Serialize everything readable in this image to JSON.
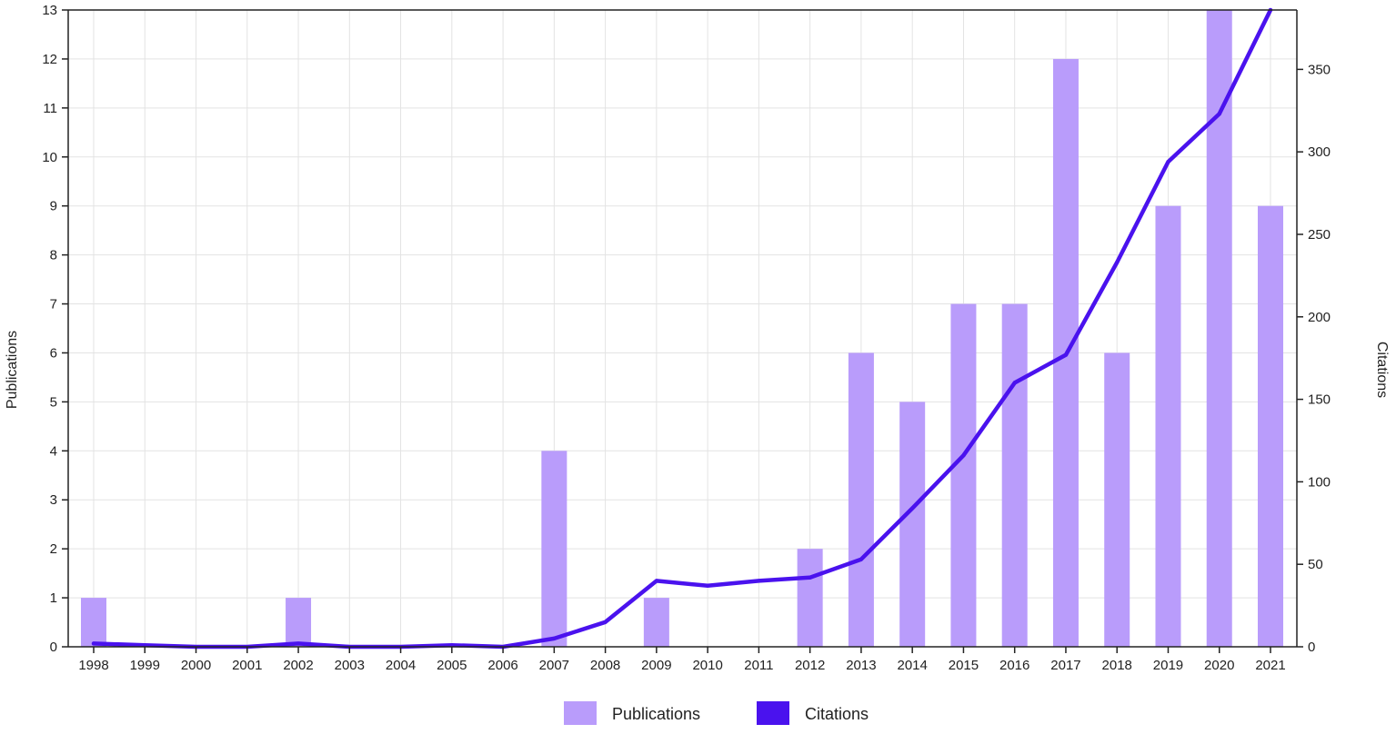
{
  "colors": {
    "publications": "#b99cfb",
    "citations": "#4a12ee",
    "grid": "#e3e3e3",
    "axis": "#222222"
  },
  "legend": {
    "publications": "Publications",
    "citations": "Citations"
  },
  "chart_data": {
    "type": "bar",
    "categories": [
      "1998",
      "1999",
      "2000",
      "2001",
      "2002",
      "2003",
      "2004",
      "2005",
      "2006",
      "2007",
      "2008",
      "2009",
      "2010",
      "2011",
      "2012",
      "2013",
      "2014",
      "2015",
      "2016",
      "2017",
      "2018",
      "2019",
      "2020",
      "2021"
    ],
    "series": [
      {
        "name": "Publications",
        "type": "bar",
        "axis": "left",
        "values": [
          1,
          0,
          0,
          0,
          1,
          0,
          0,
          0,
          0,
          4,
          0,
          1,
          0,
          0,
          2,
          6,
          5,
          7,
          7,
          12,
          6,
          9,
          13,
          9
        ]
      },
      {
        "name": "Citations",
        "type": "line",
        "axis": "right",
        "values": [
          2,
          1,
          0,
          0,
          2,
          0,
          0,
          1,
          0,
          5,
          15,
          40,
          37,
          40,
          42,
          53,
          84,
          116,
          160,
          177,
          233,
          294,
          323,
          386
        ]
      }
    ],
    "ylabel": "Publications",
    "y2label": "Citations",
    "ylim": [
      0,
      13
    ],
    "y2lim": [
      0,
      386
    ],
    "yticks": [
      "0",
      "1",
      "2",
      "3",
      "4",
      "5",
      "6",
      "7",
      "8",
      "9",
      "10",
      "11",
      "12",
      "13"
    ],
    "y2ticks": [
      "0",
      "50",
      "100",
      "150",
      "200",
      "250",
      "300",
      "350"
    ],
    "grid": true,
    "legend_position": "bottom-center"
  }
}
